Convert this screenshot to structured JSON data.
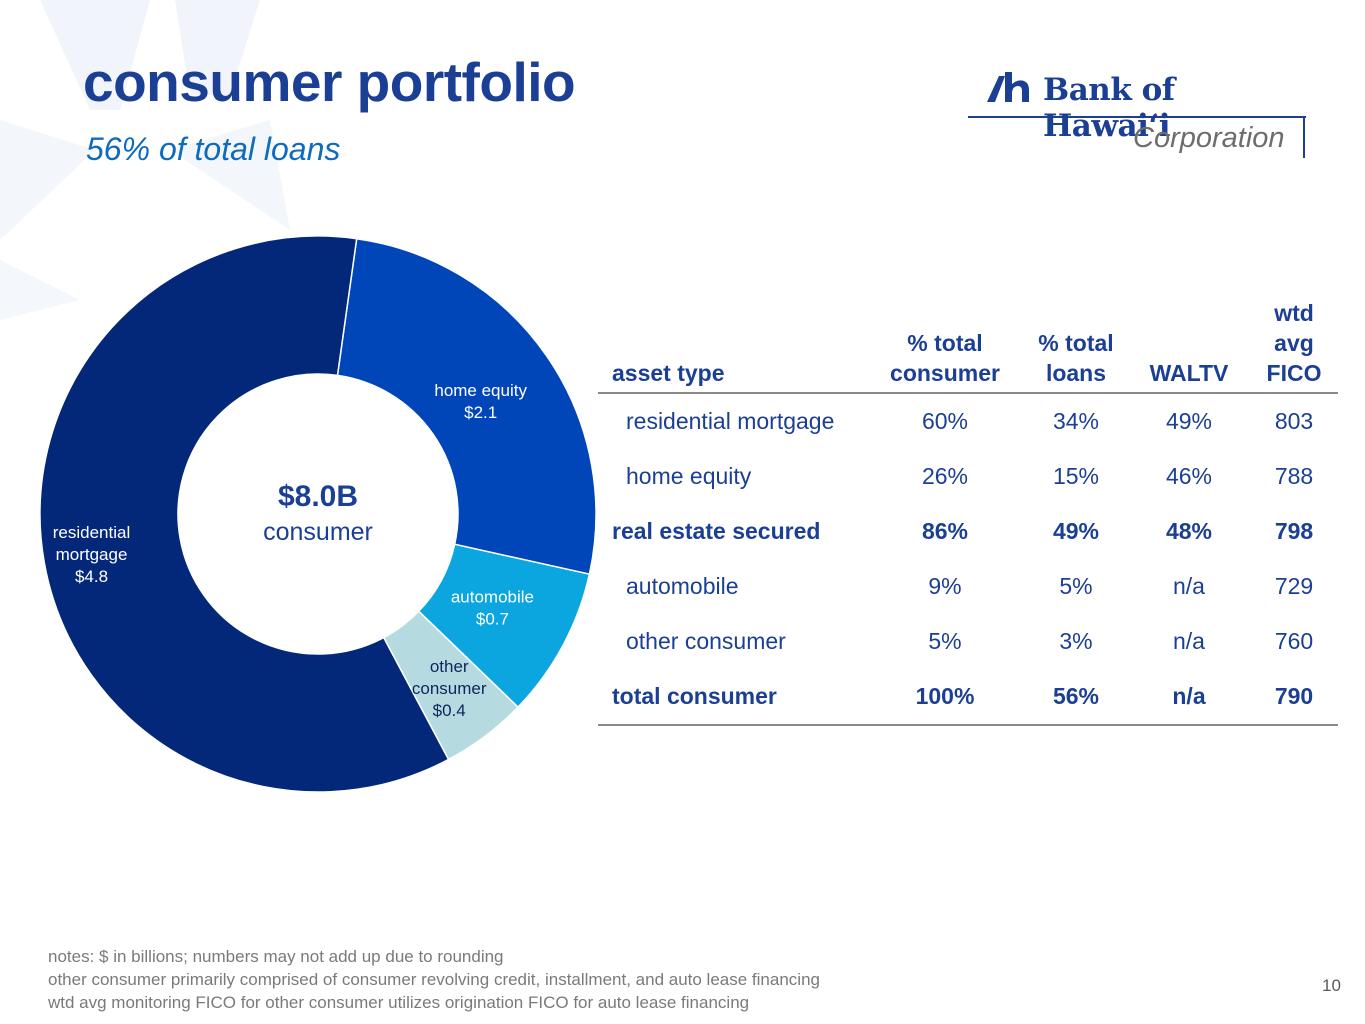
{
  "header": {
    "title": "consumer portfolio",
    "subtitle": "56% of total loans"
  },
  "logo": {
    "name": "Bank of Hawaiʻi",
    "sub": "Corporation"
  },
  "chart_data": {
    "type": "pie",
    "style": "donut",
    "units": "$ in billions",
    "center_value": "$8.0B",
    "center_label": "consumer",
    "slices": [
      {
        "name": "home equity",
        "value_label": "$2.1",
        "value": 2.1,
        "color": "#0046b8"
      },
      {
        "name": "automobile",
        "value_label": "$0.7",
        "value": 0.7,
        "color": "#0ba6df"
      },
      {
        "name": "other consumer",
        "name_lines": [
          "other",
          "consumer"
        ],
        "value_label": "$0.4",
        "value": 0.4,
        "color": "#b5dbe1"
      },
      {
        "name": "residential mortgage",
        "name_lines": [
          "residential",
          "mortgage"
        ],
        "value_label": "$4.8",
        "value": 4.8,
        "color": "#03287a"
      }
    ]
  },
  "table": {
    "columns": [
      {
        "lines": [
          "",
          "",
          "asset type"
        ]
      },
      {
        "lines": [
          "",
          "% total",
          "consumer"
        ]
      },
      {
        "lines": [
          "",
          "% total",
          "loans"
        ]
      },
      {
        "lines": [
          "",
          "",
          "WALTV"
        ]
      },
      {
        "lines": [
          "wtd",
          "avg",
          "FICO"
        ]
      }
    ],
    "rows": [
      {
        "cells": [
          "residential mortgage",
          "60%",
          "34%",
          "49%",
          "803"
        ],
        "bold": false
      },
      {
        "cells": [
          "home equity",
          "26%",
          "15%",
          "46%",
          "788"
        ],
        "bold": false
      },
      {
        "cells": [
          "real estate secured",
          "86%",
          "49%",
          "48%",
          "798"
        ],
        "bold": true
      },
      {
        "cells": [
          "automobile",
          "9%",
          "5%",
          "n/a",
          "729"
        ],
        "bold": false
      },
      {
        "cells": [
          "other consumer",
          "5%",
          "3%",
          "n/a",
          "760"
        ],
        "bold": false
      },
      {
        "cells": [
          "total consumer",
          "100%",
          "56%",
          "n/a",
          "790"
        ],
        "bold": true
      }
    ]
  },
  "notes": [
    "notes: $ in billions; numbers may not add up due to rounding",
    "other consumer primarily comprised of consumer revolving credit, installment, and auto lease financing",
    "wtd avg monitoring FICO for other consumer utilizes origination FICO for auto lease financing"
  ],
  "page_number": "10"
}
